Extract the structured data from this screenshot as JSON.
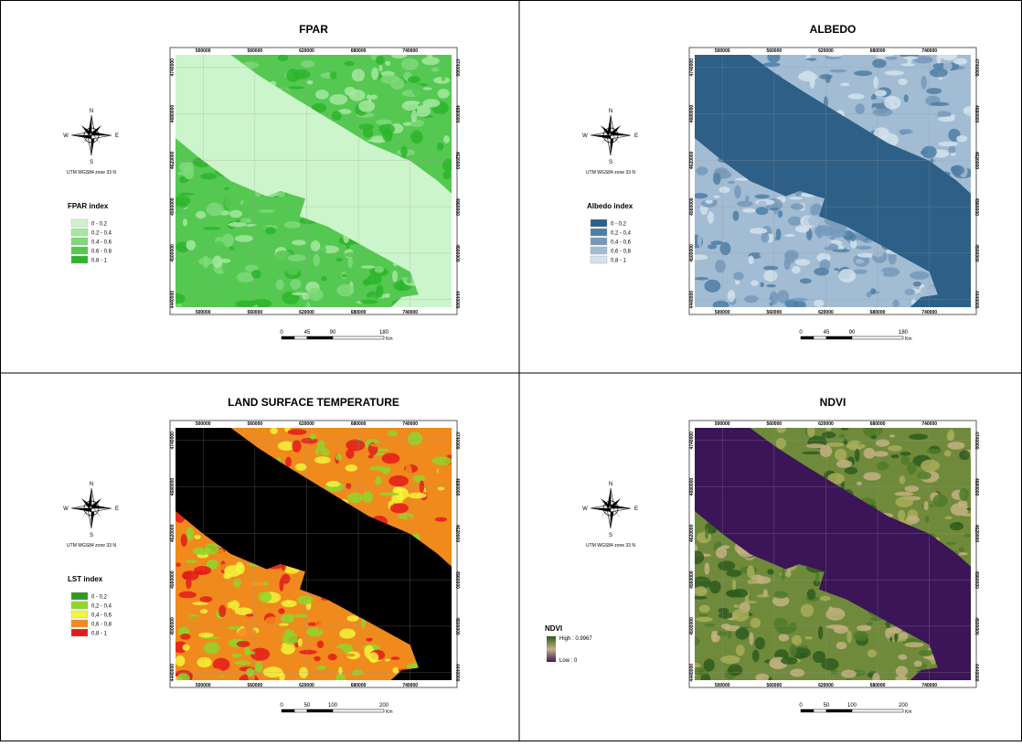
{
  "panels": [
    {
      "title": "FPAR",
      "sea_color": "#ccf5cc",
      "x_labels": [
        "500000",
        "560000",
        "620000",
        "680000",
        "740000"
      ],
      "y_labels": [
        "4740000",
        "4680000",
        "4620000",
        "4560000",
        "4500000",
        "4440000"
      ],
      "compass": {
        "n": "N",
        "s": "S",
        "e": "E",
        "w": "W"
      },
      "projection": "UTM WGS84 zone 33 N",
      "legend": {
        "title": "FPAR index",
        "items": [
          {
            "label": "0 - 0.2",
            "color": "#ccf5cc"
          },
          {
            "label": "0.2 - 0.4",
            "color": "#a6e8a0"
          },
          {
            "label": "0.4 - 0.6",
            "color": "#7fd97a"
          },
          {
            "label": "0.6 - 0.8",
            "color": "#55c852"
          },
          {
            "label": "0.8 - 1",
            "color": "#2cb52a"
          }
        ]
      },
      "scale": {
        "labels": [
          "0",
          "45",
          "90",
          "180"
        ],
        "unit": "Km"
      }
    },
    {
      "title": "ALBEDO",
      "sea_color": "#2e5f86",
      "x_labels": [
        "500000",
        "560000",
        "620000",
        "680000",
        "740000"
      ],
      "y_labels": [
        "4740000",
        "4680000",
        "4620000",
        "4560000",
        "4500000",
        "4440000"
      ],
      "compass": {
        "n": "N",
        "s": "S",
        "e": "E",
        "w": "W"
      },
      "projection": "UTM WGS84 zone 33 N",
      "legend": {
        "title": "Albedo index",
        "items": [
          {
            "label": "0 - 0,2",
            "color": "#2e5f86"
          },
          {
            "label": "0,2 - 0,4",
            "color": "#4d7ea4"
          },
          {
            "label": "0,4 - 0,6",
            "color": "#7499ba"
          },
          {
            "label": "0,6 - 0,8",
            "color": "#a2bcd3"
          },
          {
            "label": "0,8 - 1",
            "color": "#d3e2ec"
          }
        ]
      },
      "scale": {
        "labels": [
          "0",
          "45",
          "90",
          "180"
        ],
        "unit": "Km"
      }
    },
    {
      "title": "LAND SURFACE TEMPERATURE",
      "sea_color": "#000000",
      "x_labels": [
        "500000",
        "560000",
        "620000",
        "680000",
        "740000"
      ],
      "y_labels": [
        "4740000",
        "4680000",
        "4620000",
        "4560000",
        "4500000",
        "4440000"
      ],
      "compass": {
        "n": "N",
        "s": "S",
        "e": "E",
        "w": "W"
      },
      "projection": "UTM WGS84 zone 33 N",
      "legend": {
        "title": "LST index",
        "items": [
          {
            "label": "0 - 0,2",
            "color": "#2f9b1a"
          },
          {
            "label": "0,2 - 0,4",
            "color": "#8fd62a"
          },
          {
            "label": "0,4 - 0,6",
            "color": "#f5f53a"
          },
          {
            "label": "0,6 - 0,8",
            "color": "#f08a1d"
          },
          {
            "label": "0,8 - 1",
            "color": "#e41a1a"
          }
        ]
      },
      "scale": {
        "labels": [
          "0",
          "50",
          "100",
          "200"
        ],
        "unit": "Km"
      }
    },
    {
      "title": "NDVI",
      "sea_color": "#3b1557",
      "x_labels": [
        "500000",
        "560000",
        "620000",
        "680000",
        "740000"
      ],
      "y_labels": [
        "4740000",
        "4680000",
        "4620000",
        "4560000",
        "4500000",
        "4440000"
      ],
      "compass": {
        "n": "N",
        "s": "S",
        "e": "E",
        "w": "W"
      },
      "projection": "UTM WGS84 zone 33 N",
      "legend": {
        "title": "NDVI",
        "high": "High : 0.9967",
        "low": "Low : 0",
        "high_color": "#2f5a1d",
        "low_color": "#3f1a5a"
      },
      "scale": {
        "labels": [
          "0",
          "50",
          "100",
          "200"
        ],
        "unit": "Km"
      }
    }
  ]
}
